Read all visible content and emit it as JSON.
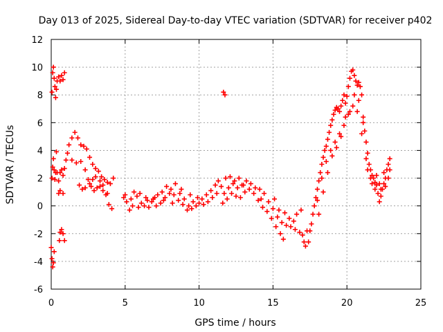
{
  "chart_data": {
    "type": "scatter",
    "title": "Day 013 of 2025, Sidereal Day-to-day VTEC variation (SDTVAR) for receiver p402",
    "xlabel": "GPS time / hours",
    "ylabel": "SDTVAR / TECUs",
    "xlim": [
      0,
      25
    ],
    "ylim": [
      -6,
      12
    ],
    "xticks": [
      0,
      5,
      10,
      15,
      20,
      25
    ],
    "yticks": [
      -6,
      -4,
      -2,
      0,
      2,
      4,
      6,
      8,
      10,
      12
    ],
    "grid": true,
    "marker": "+",
    "color": "#ff0000",
    "series": [
      {
        "name": "SDTVAR",
        "points": [
          [
            0.05,
            8.2
          ],
          [
            0.1,
            9.6
          ],
          [
            0.15,
            10.0
          ],
          [
            0.2,
            9.2
          ],
          [
            0.25,
            8.6
          ],
          [
            0.3,
            7.8
          ],
          [
            0.35,
            8.4
          ],
          [
            0.4,
            9.0
          ],
          [
            0.5,
            9.3
          ],
          [
            0.6,
            9.0
          ],
          [
            0.7,
            9.4
          ],
          [
            0.8,
            9.1
          ],
          [
            0.9,
            9.6
          ],
          [
            0.0,
            -3.0
          ],
          [
            0.05,
            -3.8
          ],
          [
            0.1,
            -4.4
          ],
          [
            0.15,
            -4.1
          ],
          [
            0.2,
            -3.3
          ],
          [
            0.55,
            -2.5
          ],
          [
            0.6,
            -1.9
          ],
          [
            0.7,
            -1.7
          ],
          [
            0.8,
            -2.0
          ],
          [
            0.9,
            -2.5
          ],
          [
            0.05,
            2.0
          ],
          [
            0.1,
            2.8
          ],
          [
            0.15,
            3.4
          ],
          [
            0.2,
            2.6
          ],
          [
            0.25,
            1.9
          ],
          [
            0.3,
            2.4
          ],
          [
            0.35,
            3.9
          ],
          [
            0.4,
            2.4
          ],
          [
            0.5,
            1.8
          ],
          [
            0.6,
            2.4
          ],
          [
            0.7,
            2.6
          ],
          [
            0.8,
            2.2
          ],
          [
            0.9,
            2.7
          ],
          [
            0.5,
            0.9
          ],
          [
            0.6,
            1.1
          ],
          [
            0.8,
            0.9
          ],
          [
            1.0,
            3.3
          ],
          [
            1.2,
            4.4
          ],
          [
            1.4,
            4.9
          ],
          [
            1.6,
            5.3
          ],
          [
            1.8,
            4.9
          ],
          [
            2.0,
            4.4
          ],
          [
            2.2,
            4.3
          ],
          [
            2.4,
            4.1
          ],
          [
            2.6,
            3.5
          ],
          [
            2.8,
            3.0
          ],
          [
            3.0,
            2.7
          ],
          [
            3.2,
            2.5
          ],
          [
            3.4,
            2.1
          ],
          [
            3.6,
            1.9
          ],
          [
            3.8,
            1.7
          ],
          [
            4.0,
            1.6
          ],
          [
            4.2,
            2.0
          ],
          [
            1.1,
            3.8
          ],
          [
            1.4,
            3.3
          ],
          [
            1.7,
            3.1
          ],
          [
            2.0,
            3.2
          ],
          [
            2.3,
            2.6
          ],
          [
            2.5,
            1.9
          ],
          [
            2.7,
            1.4
          ],
          [
            2.9,
            1.1
          ],
          [
            3.1,
            1.3
          ],
          [
            3.3,
            1.4
          ],
          [
            3.5,
            1.1
          ],
          [
            3.7,
            0.8
          ],
          [
            3.9,
            0.1
          ],
          [
            4.1,
            -0.2
          ],
          [
            1.9,
            1.5
          ],
          [
            2.1,
            1.2
          ],
          [
            2.3,
            1.3
          ],
          [
            2.6,
            1.6
          ],
          [
            2.8,
            1.9
          ],
          [
            3.0,
            2.1
          ],
          [
            3.3,
            1.8
          ],
          [
            3.5,
            1.5
          ],
          [
            3.8,
            0.9
          ],
          [
            4.9,
            0.6
          ],
          [
            5.1,
            0.3
          ],
          [
            5.3,
            -0.3
          ],
          [
            5.5,
            0.0
          ],
          [
            5.8,
            0.7
          ],
          [
            6.1,
            0.2
          ],
          [
            6.4,
            0.6
          ],
          [
            6.6,
            -0.1
          ],
          [
            6.9,
            0.5
          ],
          [
            7.2,
            0.8
          ],
          [
            7.5,
            1.0
          ],
          [
            7.8,
            1.4
          ],
          [
            8.1,
            1.2
          ],
          [
            8.4,
            1.6
          ],
          [
            8.7,
            0.9
          ],
          [
            9.0,
            0.5
          ],
          [
            9.3,
            0.0
          ],
          [
            9.6,
            0.3
          ],
          [
            9.9,
            0.6
          ],
          [
            5.0,
            0.8
          ],
          [
            5.4,
            0.5
          ],
          [
            5.9,
            -0.1
          ],
          [
            6.3,
            0.0
          ],
          [
            6.8,
            0.3
          ],
          [
            7.1,
            0.0
          ],
          [
            7.4,
            0.2
          ],
          [
            7.7,
            0.6
          ],
          [
            8.0,
            0.9
          ],
          [
            8.3,
            0.8
          ],
          [
            8.6,
            0.4
          ],
          [
            8.9,
            0.1
          ],
          [
            9.2,
            -0.3
          ],
          [
            9.5,
            -0.2
          ],
          [
            9.8,
            0.0
          ],
          [
            5.6,
            1.0
          ],
          [
            6.0,
            0.9
          ],
          [
            6.5,
            0.4
          ],
          [
            7.0,
            0.6
          ],
          [
            7.6,
            0.4
          ],
          [
            8.2,
            0.2
          ],
          [
            8.8,
            1.2
          ],
          [
            9.4,
            0.8
          ],
          [
            10.0,
            0.2
          ],
          [
            10.2,
            0.5
          ],
          [
            10.5,
            0.8
          ],
          [
            10.8,
            1.1
          ],
          [
            11.1,
            1.5
          ],
          [
            11.3,
            1.8
          ],
          [
            11.5,
            1.4
          ],
          [
            11.7,
            0.9
          ],
          [
            12.0,
            1.3
          ],
          [
            12.3,
            1.6
          ],
          [
            12.6,
            1.3
          ],
          [
            12.9,
            1.5
          ],
          [
            13.2,
            1.8
          ],
          [
            13.5,
            1.6
          ],
          [
            13.8,
            1.3
          ],
          [
            14.1,
            1.2
          ],
          [
            14.4,
            0.9
          ],
          [
            14.7,
            0.3
          ],
          [
            15.0,
            -0.2
          ],
          [
            15.3,
            -0.8
          ],
          [
            15.6,
            -1.2
          ],
          [
            15.9,
            -1.4
          ],
          [
            16.2,
            -1.5
          ],
          [
            16.5,
            -1.7
          ],
          [
            16.8,
            -1.9
          ],
          [
            17.0,
            -2.1
          ],
          [
            17.1,
            -2.6
          ],
          [
            10.3,
            0.1
          ],
          [
            10.6,
            0.3
          ],
          [
            10.9,
            0.6
          ],
          [
            11.2,
            0.9
          ],
          [
            11.6,
            0.2
          ],
          [
            11.9,
            0.5
          ],
          [
            12.2,
            0.9
          ],
          [
            12.5,
            0.7
          ],
          [
            12.8,
            0.6
          ],
          [
            13.1,
            1.0
          ],
          [
            13.4,
            1.2
          ],
          [
            13.7,
            0.9
          ],
          [
            14.0,
            0.4
          ],
          [
            14.3,
            -0.1
          ],
          [
            14.6,
            -0.4
          ],
          [
            14.9,
            -0.9
          ],
          [
            15.2,
            -1.5
          ],
          [
            15.5,
            -2.0
          ],
          [
            15.7,
            -2.4
          ],
          [
            11.8,
            2.0
          ],
          [
            12.1,
            2.1
          ],
          [
            12.4,
            1.8
          ],
          [
            12.7,
            2.0
          ],
          [
            13.0,
            1.5
          ],
          [
            14.2,
            0.5
          ],
          [
            15.1,
            0.5
          ],
          [
            15.4,
            -0.3
          ],
          [
            15.8,
            -0.5
          ],
          [
            16.1,
            -0.9
          ],
          [
            16.4,
            -1.1
          ],
          [
            16.6,
            -0.6
          ],
          [
            16.9,
            -0.3
          ],
          [
            17.3,
            -1.8
          ],
          [
            11.65,
            8.2
          ],
          [
            11.75,
            8.0
          ],
          [
            17.2,
            -2.9
          ],
          [
            17.4,
            -2.6
          ],
          [
            17.5,
            -1.8
          ],
          [
            17.6,
            -1.3
          ],
          [
            17.7,
            -0.6
          ],
          [
            17.8,
            0.0
          ],
          [
            17.9,
            0.6
          ],
          [
            18.0,
            1.2
          ],
          [
            18.1,
            1.8
          ],
          [
            18.2,
            2.4
          ],
          [
            18.3,
            3.0
          ],
          [
            18.4,
            3.5
          ],
          [
            18.5,
            4.0
          ],
          [
            18.6,
            4.3
          ],
          [
            18.7,
            4.8
          ],
          [
            18.8,
            5.3
          ],
          [
            18.9,
            5.8
          ],
          [
            19.0,
            6.2
          ],
          [
            19.1,
            6.6
          ],
          [
            19.2,
            6.9
          ],
          [
            19.3,
            7.1
          ],
          [
            19.4,
            7.0
          ],
          [
            19.5,
            6.8
          ],
          [
            19.6,
            7.2
          ],
          [
            19.7,
            7.6
          ],
          [
            19.8,
            8.0
          ],
          [
            19.9,
            7.4
          ],
          [
            20.0,
            7.9
          ],
          [
            20.1,
            8.6
          ],
          [
            20.2,
            9.2
          ],
          [
            20.3,
            9.7
          ],
          [
            20.4,
            9.8
          ],
          [
            20.5,
            9.4
          ],
          [
            20.6,
            9.0
          ],
          [
            20.7,
            8.7
          ],
          [
            20.8,
            8.9
          ],
          [
            20.9,
            8.6
          ],
          [
            21.0,
            8.0
          ],
          [
            21.1,
            6.4
          ],
          [
            21.2,
            5.4
          ],
          [
            21.3,
            4.6
          ],
          [
            21.4,
            3.8
          ],
          [
            21.5,
            3.0
          ],
          [
            21.6,
            2.6
          ],
          [
            21.7,
            2.2
          ],
          [
            21.8,
            2.0
          ],
          [
            21.9,
            1.7
          ],
          [
            22.0,
            1.5
          ],
          [
            22.1,
            0.9
          ],
          [
            22.2,
            0.3
          ],
          [
            22.3,
            0.7
          ],
          [
            22.4,
            1.2
          ],
          [
            22.5,
            1.6
          ],
          [
            22.6,
            2.0
          ],
          [
            22.7,
            2.6
          ],
          [
            22.8,
            3.0
          ],
          [
            22.9,
            3.4
          ],
          [
            18.0,
            0.4
          ],
          [
            18.3,
            2.0
          ],
          [
            18.6,
            3.2
          ],
          [
            18.9,
            4.0
          ],
          [
            19.2,
            4.6
          ],
          [
            19.5,
            5.2
          ],
          [
            19.8,
            5.8
          ],
          [
            20.1,
            6.6
          ],
          [
            20.4,
            7.2
          ],
          [
            20.7,
            6.8
          ],
          [
            21.0,
            5.2
          ],
          [
            21.3,
            3.4
          ],
          [
            21.6,
            2.0
          ],
          [
            21.9,
            1.2
          ],
          [
            22.2,
            1.6
          ],
          [
            22.5,
            2.4
          ],
          [
            22.8,
            2.0
          ],
          [
            18.1,
            -0.6
          ],
          [
            18.4,
            1.0
          ],
          [
            18.7,
            2.4
          ],
          [
            19.0,
            3.6
          ],
          [
            19.3,
            4.2
          ],
          [
            19.6,
            5.0
          ],
          [
            19.9,
            6.4
          ],
          [
            20.2,
            6.8
          ],
          [
            20.5,
            8.0
          ],
          [
            20.8,
            7.6
          ],
          [
            21.1,
            6.0
          ],
          [
            21.4,
            2.6
          ],
          [
            21.7,
            1.6
          ],
          [
            22.0,
            2.2
          ],
          [
            22.3,
            1.2
          ],
          [
            22.6,
            1.4
          ],
          [
            22.9,
            2.6
          ]
        ]
      }
    ]
  }
}
